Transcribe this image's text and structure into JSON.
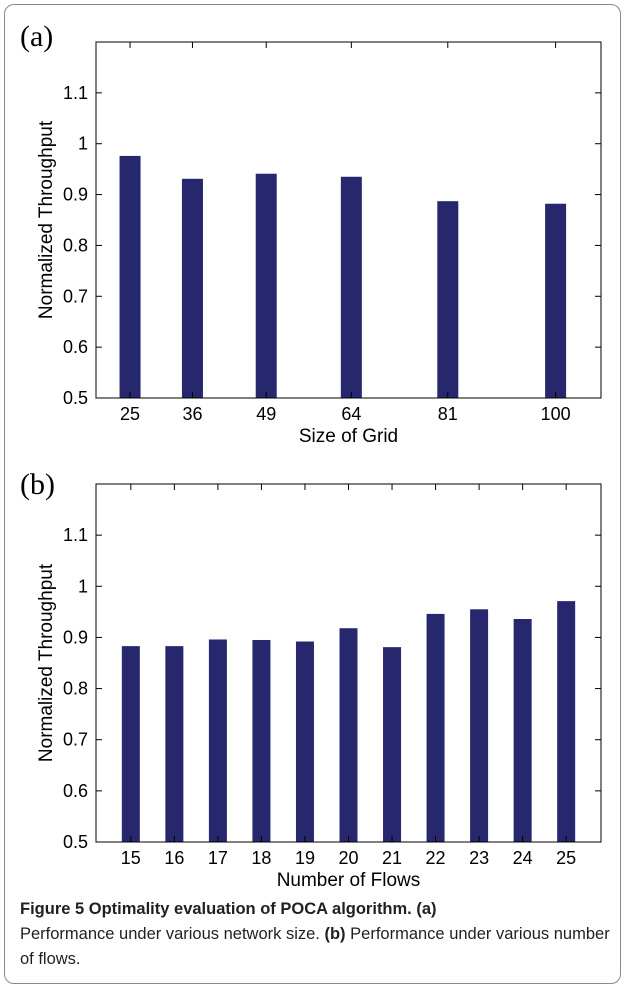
{
  "chart_data": [
    {
      "panel_label": "(a)",
      "type": "bar",
      "categories": [
        "25",
        "36",
        "49",
        "64",
        "81",
        "100"
      ],
      "x": [
        25,
        36,
        49,
        64,
        81,
        100
      ],
      "values": [
        0.976,
        0.931,
        0.941,
        0.935,
        0.887,
        0.882
      ],
      "xlabel": "Size of Grid",
      "ylabel": "Normalized Throughput",
      "xlim": [
        19,
        108
      ],
      "ylim": [
        0.5,
        1.2
      ],
      "yticks": [
        "0.5",
        "0.6",
        "0.7",
        "0.8",
        "0.9",
        "1",
        "1.1"
      ],
      "bar_color": "#27276e",
      "grid": false
    },
    {
      "panel_label": "(b)",
      "type": "bar",
      "categories": [
        "15",
        "16",
        "17",
        "18",
        "19",
        "20",
        "21",
        "22",
        "23",
        "24",
        "25"
      ],
      "x": [
        15,
        16,
        17,
        18,
        19,
        20,
        21,
        22,
        23,
        24,
        25
      ],
      "values": [
        0.883,
        0.883,
        0.896,
        0.895,
        0.892,
        0.918,
        0.881,
        0.946,
        0.955,
        0.936,
        0.971
      ],
      "xlabel": "Number of Flows",
      "ylabel": "Normalized Throughput",
      "xlim": [
        14.2,
        25.8
      ],
      "ylim": [
        0.5,
        1.2
      ],
      "yticks": [
        "0.5",
        "0.6",
        "0.7",
        "0.8",
        "0.9",
        "1",
        "1.1"
      ],
      "bar_color": "#27276e",
      "grid": false
    }
  ],
  "caption": {
    "figure_title": "Figure 5 Optimality evaluation of POCA algorithm.",
    "label_a": "(a)",
    "text_a": "Performance under various network size.",
    "label_b": "(b)",
    "text_b": "Performance under various number of flows."
  }
}
